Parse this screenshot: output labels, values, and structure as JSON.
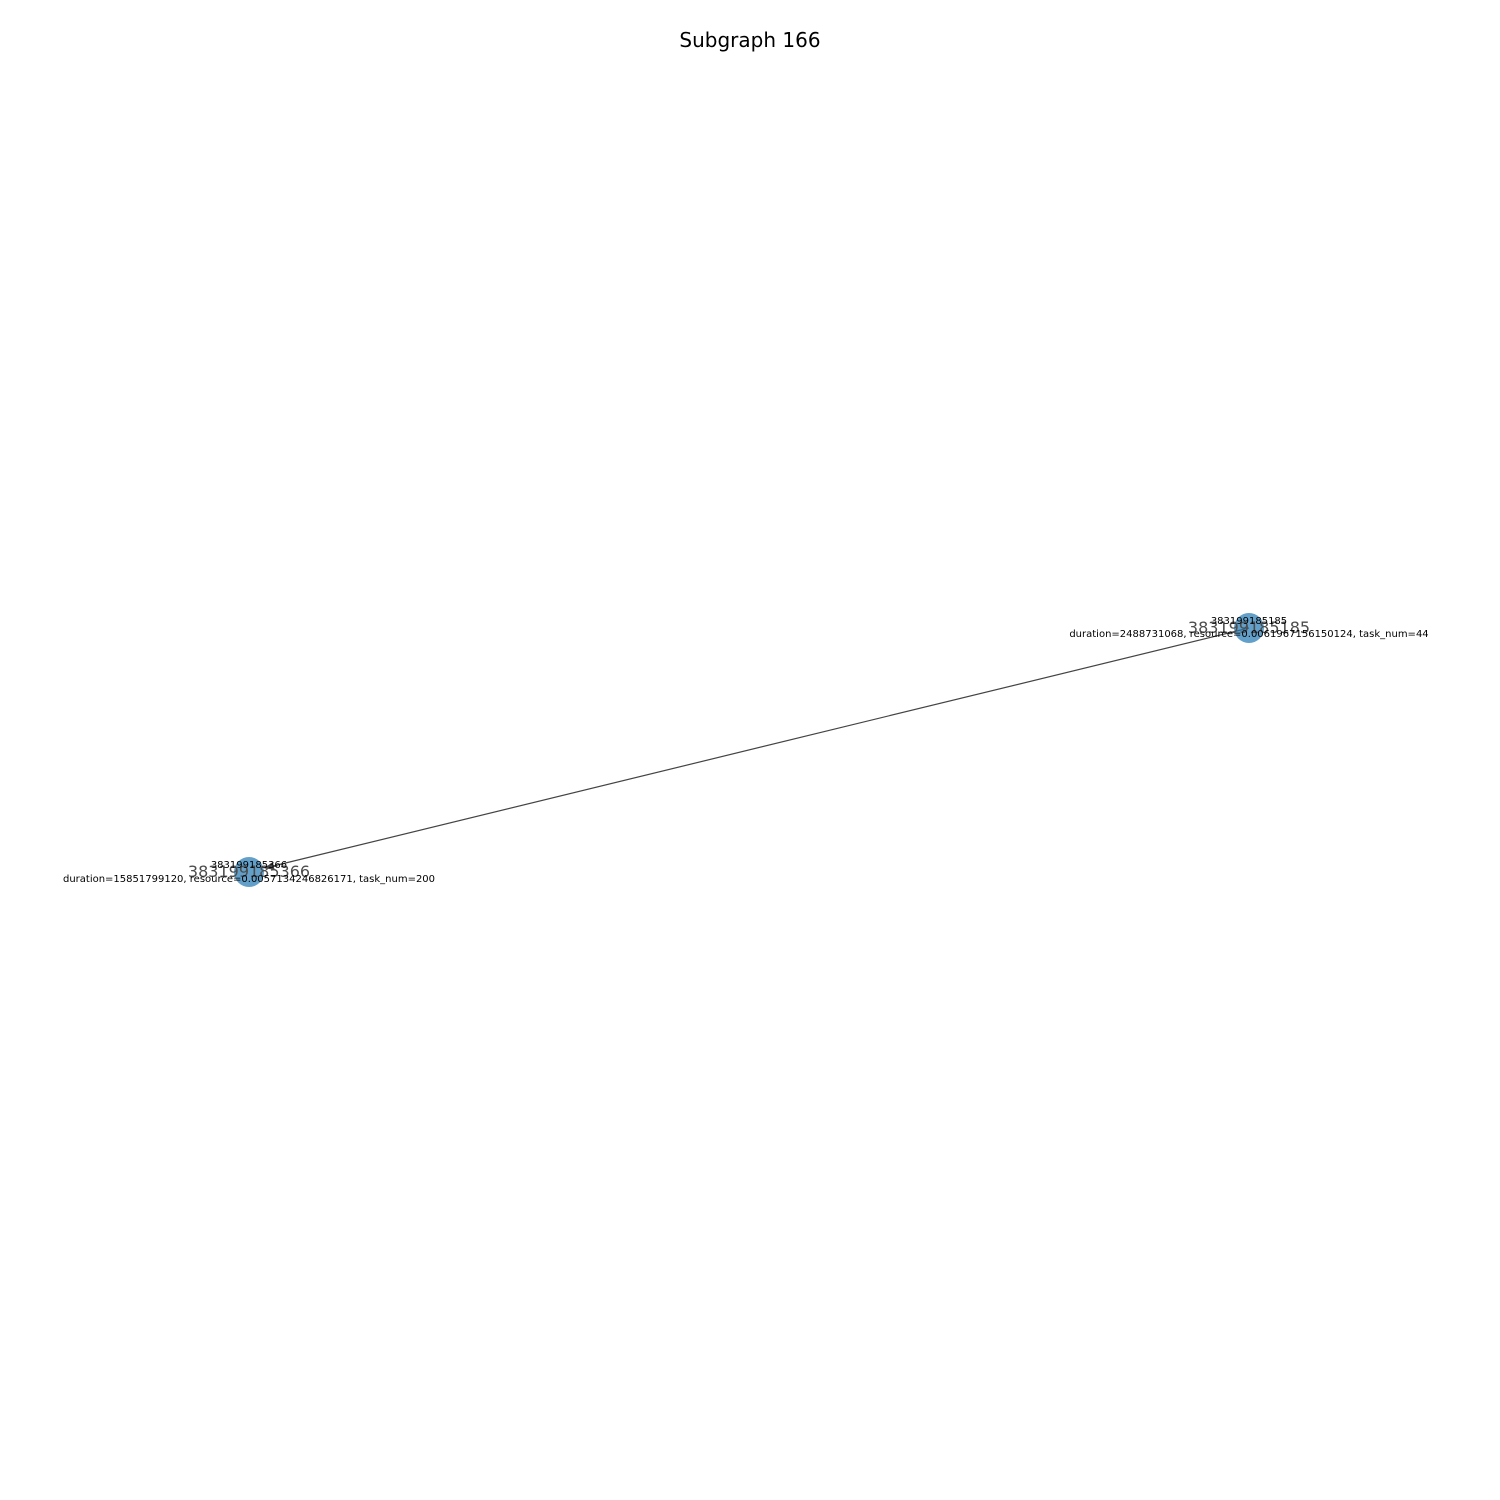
{
  "title": "Subgraph 166",
  "colors": {
    "node_fill": "#1f77b4",
    "edge": "#444444",
    "background": "#ffffff"
  },
  "nodes": [
    {
      "id": "383199185185",
      "label_large": "383199185185",
      "label_small": "383199185185",
      "attributes": "duration=2488731068, resource=0.0061967156150124, task_num=44"
    },
    {
      "id": "383199185366",
      "label_large": "383199185366",
      "label_small": "383199185366",
      "attributes": "duration=15851799120, resource=0.0057134246826171, task_num=200"
    }
  ],
  "edges": [
    {
      "source": "383199185185",
      "target": "383199185366",
      "directed": true
    }
  ]
}
